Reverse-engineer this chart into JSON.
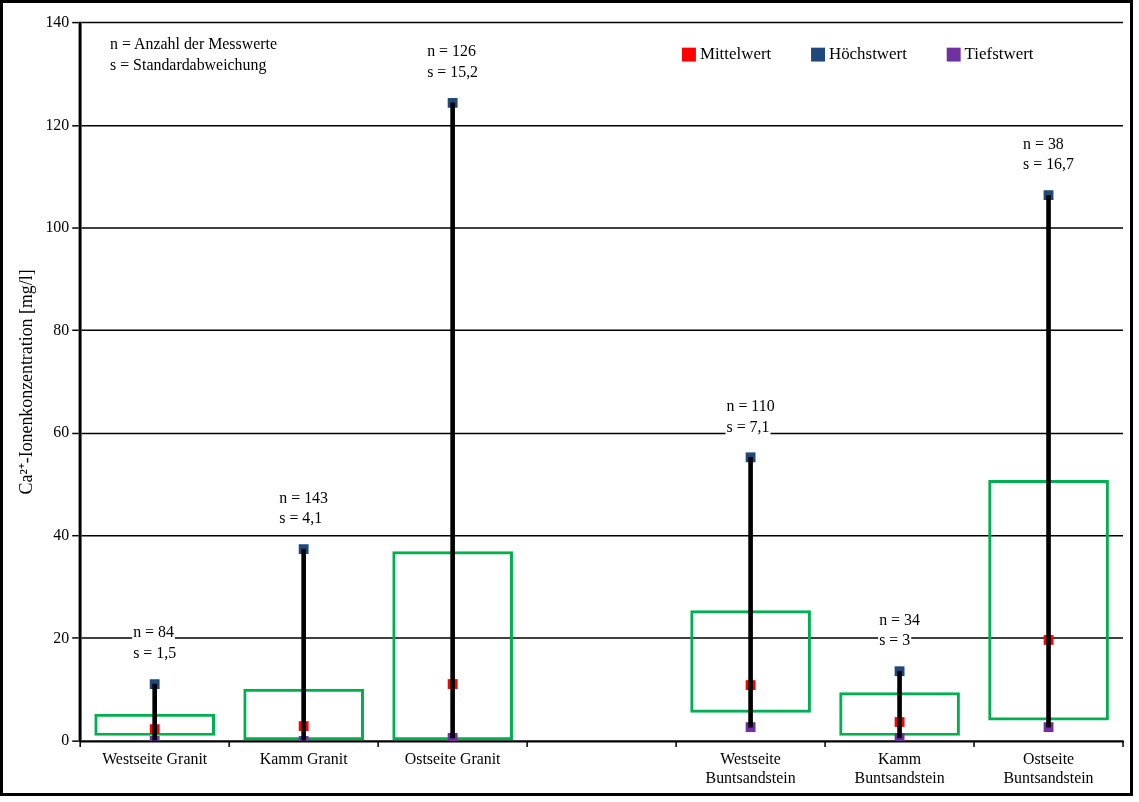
{
  "chart_data": {
    "type": "scatter",
    "ylabel": "Ca²⁺-Ionenkonzentration [mg/l]",
    "categories": [
      "Westseite Granit",
      "Kamm Granit",
      "Ostseite Granit",
      null,
      "Westseite Buntsandstein",
      "Kamm Buntsandstein",
      "Ostseite Buntsandstein"
    ],
    "series": [
      {
        "type": "bar",
        "color": "#00b050",
        "base": [
          1,
          0,
          0,
          null,
          5.5,
          1,
          4
        ],
        "values": [
          4.3,
          10.2,
          37,
          null,
          20,
          8.5,
          46.9
        ]
      },
      {
        "type": "bar",
        "color": "#000000",
        "base": [
          0,
          0,
          0.6,
          null,
          2.7,
          0.6,
          2.7
        ],
        "values": [
          11.1,
          37.4,
          123.8,
          null,
          52.6,
          13,
          103.7
        ]
      },
      {
        "name": "Mittelwert",
        "color": "#ff0000",
        "values": [
          2.3,
          2.9,
          11.1,
          null,
          10.9,
          3.7,
          19.7
        ]
      },
      {
        "name": "Höchstwert",
        "color": "#1f497d",
        "values": [
          11.1,
          37.4,
          124.4,
          null,
          55.3,
          13.6,
          106.4
        ]
      },
      {
        "name": "Tiefstwert",
        "color": "#7030a0",
        "values": [
          0,
          0,
          0.6,
          null,
          2.7,
          0.6,
          2.7
        ]
      }
    ],
    "ylim": [
      0,
      140
    ],
    "yticks": [
      0,
      20,
      40,
      60,
      80,
      100,
      120,
      140
    ],
    "grid": "y",
    "legend": "top right",
    "marker": "square",
    "annotations": [
      "n = Anzahl der Messwerte\ns = Standardabweichung",
      {
        "text": "n = 84\ns = 1,5",
        "x": "Westseite Granit",
        "y": 11.1
      },
      {
        "text": "n = 143\ns = 4,1",
        "x": "Kamm Granit",
        "y": 37.4
      },
      {
        "text": "n = 126\ns = 15,2",
        "x": "Ostseite Granit",
        "y": 124.4
      },
      {
        "text": "n = 110\ns = 7,1",
        "x": "Westseite Buntsandstein",
        "y": 55.3
      },
      {
        "text": "n = 34\ns = 3",
        "x": "Kamm Buntsandstein",
        "y": 13.6
      },
      {
        "text": "n = 38\ns = 16,7",
        "x": "Ostseite Buntsandstein",
        "y": 106.4
      }
    ]
  }
}
